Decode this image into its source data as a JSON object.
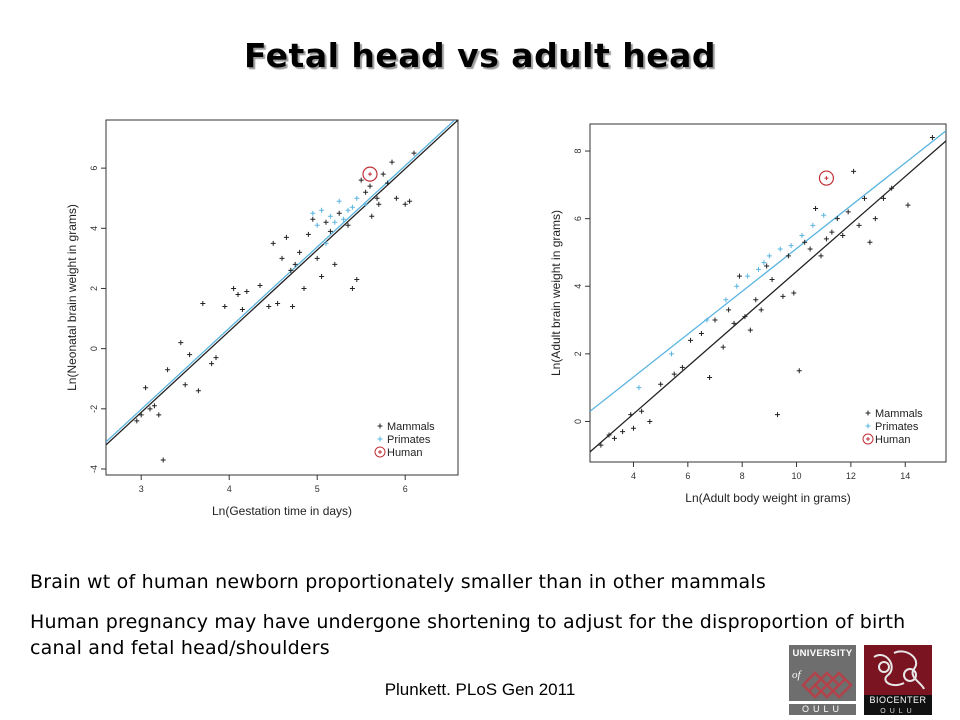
{
  "slide": {
    "title": "Fetal head vs adult head",
    "bullets": [
      "Brain wt of human newborn proportionately smaller than in other mammals",
      "Human pregnancy may have undergone shortening to adjust for the disproportion of birth canal and fetal head/shoulders"
    ],
    "citation": "Plunkett. PLoS Gen 2011",
    "logos": {
      "oulu_top": "UNIVERSITY",
      "oulu_mid": "of",
      "oulu_bottom": "OULU",
      "biocenter_top": "BIOCENTER",
      "biocenter_bottom": "OULU"
    }
  },
  "colors": {
    "mammals": "#222222",
    "primates": "#5ab4e0",
    "human": "#c0303a"
  },
  "chart_data": [
    {
      "type": "scatter",
      "title": "",
      "xlabel": "Ln(Gestation time in days)",
      "ylabel": "Ln(Neonatal brain weight in grams)",
      "xlim": [
        2.6,
        6.6
      ],
      "ylim": [
        -4.2,
        7.6
      ],
      "xticks": [
        3,
        4,
        5,
        6
      ],
      "yticks": [
        -4,
        -2,
        0,
        2,
        4,
        6
      ],
      "legend": {
        "position": "bottom-right",
        "entries": [
          "Mammals",
          "Primates",
          "Human"
        ]
      },
      "fit_lines": [
        {
          "name": "Mammals",
          "x": [
            2.6,
            6.6
          ],
          "y": [
            -3.2,
            7.6
          ]
        },
        {
          "name": "Primates",
          "x": [
            2.6,
            6.6
          ],
          "y": [
            -3.1,
            7.7
          ]
        }
      ],
      "series": [
        {
          "name": "Mammals",
          "marker": "plus",
          "points": [
            [
              2.95,
              -2.4
            ],
            [
              3.0,
              -2.2
            ],
            [
              3.05,
              -1.3
            ],
            [
              3.1,
              -2.0
            ],
            [
              3.15,
              -1.9
            ],
            [
              3.2,
              -2.2
            ],
            [
              3.25,
              -3.7
            ],
            [
              3.3,
              -0.7
            ],
            [
              3.45,
              0.2
            ],
            [
              3.5,
              -1.2
            ],
            [
              3.55,
              -0.2
            ],
            [
              3.65,
              -1.4
            ],
            [
              3.7,
              1.5
            ],
            [
              3.8,
              -0.5
            ],
            [
              3.85,
              -0.3
            ],
            [
              3.95,
              1.4
            ],
            [
              4.05,
              2.0
            ],
            [
              4.1,
              1.8
            ],
            [
              4.15,
              1.3
            ],
            [
              4.2,
              1.9
            ],
            [
              4.35,
              2.1
            ],
            [
              4.45,
              1.4
            ],
            [
              4.5,
              3.5
            ],
            [
              4.55,
              1.5
            ],
            [
              4.6,
              3.0
            ],
            [
              4.65,
              3.7
            ],
            [
              4.7,
              2.6
            ],
            [
              4.72,
              1.4
            ],
            [
              4.75,
              2.8
            ],
            [
              4.8,
              3.2
            ],
            [
              4.85,
              2.0
            ],
            [
              4.9,
              3.8
            ],
            [
              4.95,
              4.3
            ],
            [
              5.0,
              3.0
            ],
            [
              5.05,
              2.4
            ],
            [
              5.1,
              4.2
            ],
            [
              5.15,
              3.9
            ],
            [
              5.2,
              2.8
            ],
            [
              5.25,
              4.5
            ],
            [
              5.35,
              4.1
            ],
            [
              5.4,
              2.0
            ],
            [
              5.45,
              2.3
            ],
            [
              5.5,
              5.6
            ],
            [
              5.55,
              5.2
            ],
            [
              5.6,
              5.4
            ],
            [
              5.62,
              4.4
            ],
            [
              5.68,
              5.0
            ],
            [
              5.7,
              4.8
            ],
            [
              5.75,
              5.8
            ],
            [
              5.8,
              5.5
            ],
            [
              5.85,
              6.2
            ],
            [
              5.9,
              5.0
            ],
            [
              6.0,
              4.8
            ],
            [
              6.05,
              4.9
            ],
            [
              6.1,
              6.5
            ]
          ]
        },
        {
          "name": "Primates",
          "marker": "plus",
          "points": [
            [
              4.95,
              4.5
            ],
            [
              5.0,
              4.1
            ],
            [
              5.05,
              4.6
            ],
            [
              5.1,
              3.5
            ],
            [
              5.15,
              4.4
            ],
            [
              5.2,
              4.2
            ],
            [
              5.25,
              4.9
            ],
            [
              5.3,
              4.3
            ],
            [
              5.35,
              4.6
            ],
            [
              5.4,
              4.7
            ],
            [
              5.45,
              5.0
            ],
            [
              5.55,
              4.8
            ]
          ]
        },
        {
          "name": "Human",
          "marker": "circle",
          "points": [
            [
              5.6,
              5.8
            ]
          ]
        }
      ]
    },
    {
      "type": "scatter",
      "title": "",
      "xlabel": "Ln(Adult body weight in grams)",
      "ylabel": "Ln(Adult brain weight in grams)",
      "xlim": [
        2.4,
        15.5
      ],
      "ylim": [
        -1.2,
        8.8
      ],
      "xticks": [
        4,
        6,
        8,
        10,
        12,
        14
      ],
      "yticks": [
        0,
        2,
        4,
        6,
        8
      ],
      "legend": {
        "position": "bottom-right",
        "entries": [
          "Mammals",
          "Primates",
          "Human"
        ]
      },
      "fit_lines": [
        {
          "name": "Mammals",
          "x": [
            2.4,
            15.5
          ],
          "y": [
            -0.9,
            8.3
          ]
        },
        {
          "name": "Primates",
          "x": [
            2.4,
            15.5
          ],
          "y": [
            0.3,
            8.6
          ]
        }
      ],
      "series": [
        {
          "name": "Mammals",
          "marker": "plus",
          "points": [
            [
              2.8,
              -0.7
            ],
            [
              3.1,
              -0.4
            ],
            [
              3.3,
              -0.5
            ],
            [
              3.6,
              -0.3
            ],
            [
              3.9,
              0.2
            ],
            [
              4.0,
              -0.2
            ],
            [
              4.3,
              0.3
            ],
            [
              4.6,
              0.0
            ],
            [
              5.0,
              1.1
            ],
            [
              5.5,
              1.4
            ],
            [
              5.8,
              1.6
            ],
            [
              6.1,
              2.4
            ],
            [
              6.5,
              2.6
            ],
            [
              6.8,
              1.3
            ],
            [
              7.0,
              3.0
            ],
            [
              7.3,
              2.2
            ],
            [
              7.5,
              3.3
            ],
            [
              7.7,
              2.9
            ],
            [
              7.9,
              4.3
            ],
            [
              8.1,
              3.1
            ],
            [
              8.3,
              2.7
            ],
            [
              8.5,
              3.6
            ],
            [
              8.7,
              3.3
            ],
            [
              8.9,
              4.6
            ],
            [
              9.1,
              4.2
            ],
            [
              9.3,
              0.2
            ],
            [
              9.5,
              3.7
            ],
            [
              9.7,
              4.9
            ],
            [
              9.9,
              3.8
            ],
            [
              10.1,
              1.5
            ],
            [
              10.3,
              5.3
            ],
            [
              10.5,
              5.1
            ],
            [
              10.7,
              6.3
            ],
            [
              10.9,
              4.9
            ],
            [
              11.1,
              5.4
            ],
            [
              11.3,
              5.6
            ],
            [
              11.5,
              6.0
            ],
            [
              11.7,
              5.5
            ],
            [
              11.9,
              6.2
            ],
            [
              12.1,
              7.4
            ],
            [
              12.3,
              5.8
            ],
            [
              12.5,
              6.6
            ],
            [
              12.7,
              5.3
            ],
            [
              12.9,
              6.0
            ],
            [
              13.2,
              6.6
            ],
            [
              13.5,
              6.9
            ],
            [
              14.1,
              6.4
            ],
            [
              15.0,
              8.4
            ]
          ]
        },
        {
          "name": "Primates",
          "marker": "plus",
          "points": [
            [
              4.2,
              1.0
            ],
            [
              5.4,
              2.0
            ],
            [
              6.7,
              3.0
            ],
            [
              7.4,
              3.6
            ],
            [
              7.8,
              4.0
            ],
            [
              8.2,
              4.3
            ],
            [
              8.6,
              4.5
            ],
            [
              8.8,
              4.7
            ],
            [
              9.0,
              4.9
            ],
            [
              9.4,
              5.1
            ],
            [
              9.8,
              5.2
            ],
            [
              10.2,
              5.5
            ],
            [
              10.6,
              5.8
            ],
            [
              11.0,
              6.1
            ]
          ]
        },
        {
          "name": "Human",
          "marker": "circle",
          "points": [
            [
              11.1,
              7.2
            ]
          ]
        }
      ]
    }
  ]
}
